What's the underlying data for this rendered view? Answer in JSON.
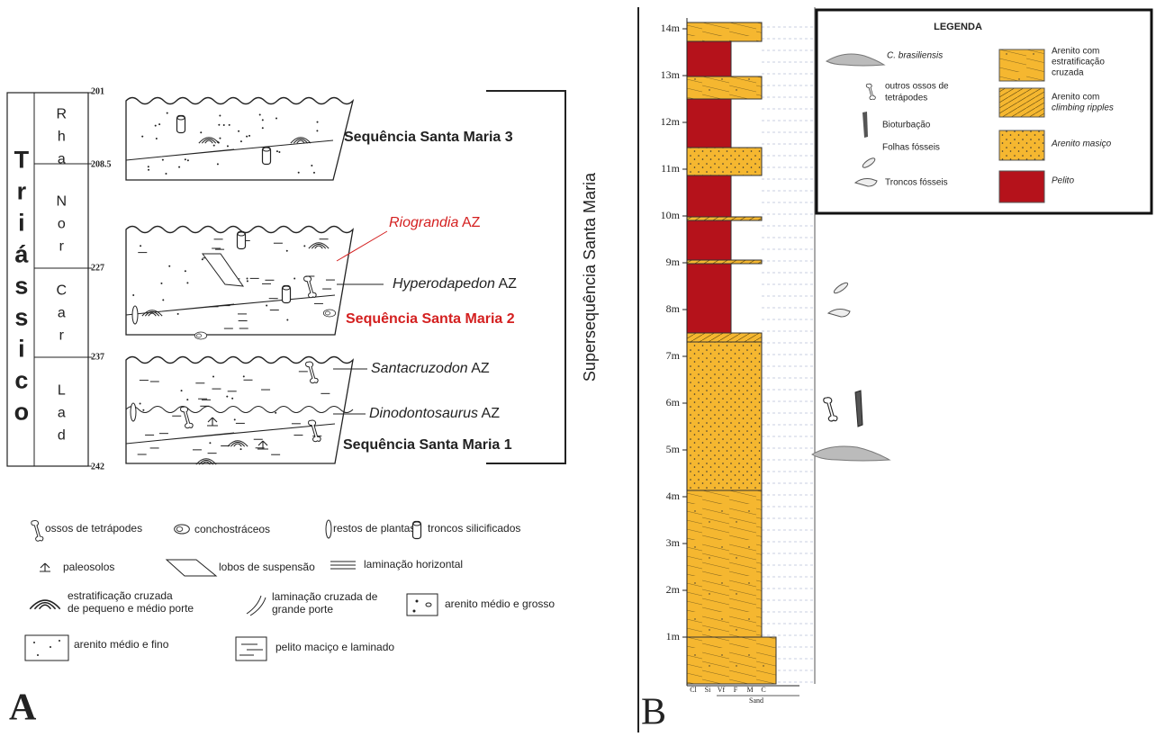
{
  "panel_a": {
    "label": "A",
    "period": "Triássico",
    "stages": [
      "Rha",
      "Nor",
      "Car",
      "Lad"
    ],
    "ages": [
      "201",
      "208.5",
      "227",
      "237",
      "242"
    ],
    "sequences": [
      "Sequência Santa Maria 3",
      "Sequência Santa Maria 2",
      "Sequência Santa Maria 1"
    ],
    "zones": [
      {
        "name": "Riograndia",
        "suffix": "AZ"
      },
      {
        "name": "Hyperodapedon",
        "suffix": "AZ"
      },
      {
        "name": "Santacruzodon",
        "suffix": "AZ"
      },
      {
        "name": "Dinodontosaurus",
        "suffix": "AZ"
      }
    ],
    "supersequence": "Supersequência Santa Maria",
    "legend": [
      "ossos de tetrápodes",
      "conchostráceos",
      "restos de plantas",
      "troncos silicificados",
      "paleosolos",
      "lobos de suspensão",
      "laminação horizontal",
      [
        "estratificação cruzada",
        "de pequeno e médio porte"
      ],
      [
        "laminação cruzada de",
        "grande porte"
      ],
      "arenito médio e grosso",
      "arenito médio e fino",
      "pelito maciço e laminado"
    ]
  },
  "panel_b": {
    "label": "B",
    "depths": [
      "1m",
      "2m",
      "3m",
      "4m",
      "5m",
      "6m",
      "7m",
      "8m",
      "9m",
      "10m",
      "11m",
      "12m",
      "13m",
      "14m"
    ],
    "grain_sizes": [
      "Cl",
      "Si",
      "Vf",
      "F",
      "M",
      "C"
    ],
    "sand": "Sand",
    "legend": {
      "title": "LEGENDA",
      "fossils": [
        "C. brasiliensis",
        [
          "outros ossos de",
          "tetrápodes"
        ],
        "Bioturbação",
        "Folhas fósseis",
        "Troncos fósseis"
      ],
      "lithologies": [
        [
          "Arenito com",
          "estratificação",
          "cruzada"
        ],
        [
          "Arenito com",
          "climbing ripples"
        ],
        "Arenito masiço",
        "Pelito"
      ]
    }
  }
}
